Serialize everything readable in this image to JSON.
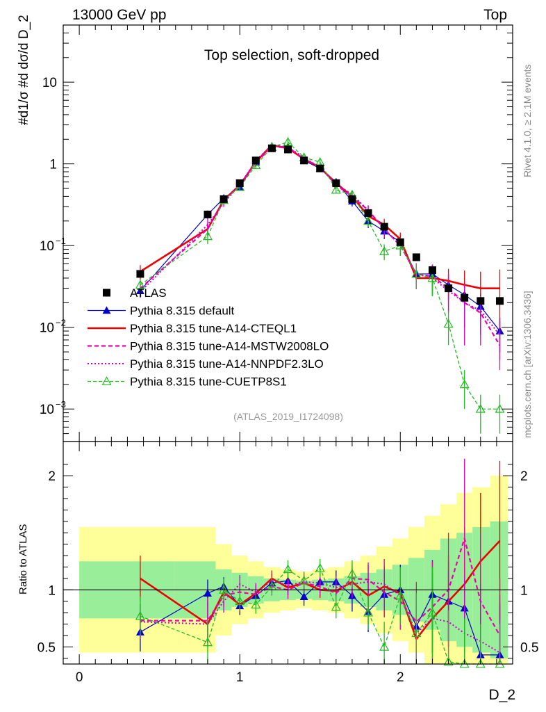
{
  "header": {
    "left": "13000 GeV pp",
    "right": "Top",
    "side_top": "Rivet 4.1.0, ≥ 2.1M events",
    "side_bottom": "mcplots.cern.ch [arXiv:1306.3436]"
  },
  "chart_data": {
    "type": "line",
    "title": "Top selection, soft-dropped",
    "analysis_id": "(ATLAS_2019_I1724098)",
    "xlabel": "D_2",
    "ylabel": "#d1/σ #d dσ/d D_2",
    "ratio_ylabel": "Ratio to ATLAS",
    "xlim": [
      -0.1,
      2.7
    ],
    "ylim_log": [
      0.0004,
      50
    ],
    "ratio_ylim": [
      0.35,
      2.3
    ],
    "x_ticks": [
      {
        "v": 0,
        "label": "0"
      },
      {
        "v": 1,
        "label": "1"
      },
      {
        "v": 2,
        "label": "2"
      }
    ],
    "y_ticks": [
      {
        "v": 10,
        "base": "10",
        "exp": ""
      },
      {
        "v": 1,
        "base": "1",
        "exp": ""
      },
      {
        "v": 0.1,
        "base": "10",
        "exp": "−1"
      },
      {
        "v": 0.01,
        "base": "10",
        "exp": "−2"
      },
      {
        "v": 0.001,
        "base": "10",
        "exp": "−3"
      }
    ],
    "ratio_ticks": [
      {
        "v": 0.5,
        "label": "0.5"
      },
      {
        "v": 1,
        "label": "1"
      },
      {
        "v": 2,
        "label": "2"
      }
    ],
    "x": [
      0.38,
      0.8,
      0.9,
      1.0,
      1.1,
      1.2,
      1.3,
      1.4,
      1.5,
      1.6,
      1.7,
      1.8,
      1.9,
      2.0,
      2.1,
      2.2,
      2.3,
      2.4,
      2.5,
      2.62
    ],
    "data": {
      "name": "ATLAS",
      "values": [
        0.045,
        0.24,
        0.37,
        0.58,
        1.1,
        1.55,
        1.5,
        1.1,
        0.88,
        0.58,
        0.37,
        0.25,
        0.17,
        0.11,
        0.072,
        0.05,
        0.03,
        0.023,
        0.021,
        0.021
      ],
      "band_inner": [
        0.25,
        0.25,
        0.18,
        0.15,
        0.12,
        0.1,
        0.09,
        0.08,
        0.09,
        0.1,
        0.12,
        0.15,
        0.18,
        0.22,
        0.28,
        0.35,
        0.45,
        0.5,
        0.55,
        0.6
      ],
      "band_outer": [
        0.55,
        0.55,
        0.4,
        0.3,
        0.25,
        0.2,
        0.18,
        0.16,
        0.18,
        0.2,
        0.25,
        0.3,
        0.38,
        0.45,
        0.55,
        0.65,
        0.75,
        0.85,
        0.9,
        1.0
      ]
    },
    "series": [
      {
        "name": "Pythia 8.315 default",
        "color": "#0000cc",
        "dash": "",
        "width": 1.2,
        "marker": "triangle-filled",
        "values": [
          0.028,
          0.24,
          0.38,
          0.52,
          1.05,
          1.65,
          1.62,
          1.1,
          0.88,
          0.6,
          0.35,
          0.2,
          0.15,
          0.11,
          0.045,
          0.045,
          0.033,
          0.025,
          0.018,
          0.009
        ],
        "ratio": [
          0.63,
          0.97,
          1.03,
          0.86,
          0.95,
          1.06,
          1.08,
          0.94,
          1.07,
          1.07,
          0.95,
          0.81,
          0.96,
          1.0,
          0.68,
          0.96,
          0.9,
          0.84,
          0.43,
          0.43
        ],
        "err": [
          0.17,
          0.12,
          0.08,
          0.08,
          0.08,
          0.08,
          0.08,
          0.08,
          0.08,
          0.1,
          0.14,
          0.18,
          0.2,
          0.22,
          0.25,
          0.3,
          0.35,
          0.4,
          0.45,
          0.45
        ]
      },
      {
        "name": "Pythia 8.315 tune-A14-CTEQL1",
        "color": "#ee0000",
        "dash": "",
        "width": 2.6,
        "marker": "none",
        "values": [
          0.048,
          0.16,
          0.36,
          0.55,
          1.05,
          1.7,
          1.55,
          1.15,
          0.9,
          0.58,
          0.4,
          0.23,
          0.18,
          0.12,
          0.04,
          0.04,
          0.037,
          0.033,
          0.03,
          0.03
        ],
        "ratio": [
          1.1,
          0.7,
          0.98,
          0.87,
          0.97,
          1.1,
          1.02,
          1.06,
          1.0,
          0.99,
          1.07,
          0.95,
          1.03,
          0.97,
          0.57,
          0.75,
          0.9,
          1.05,
          1.25,
          1.43
        ],
        "err": [
          0.2,
          0.15,
          0.08,
          0.07,
          0.07,
          0.07,
          0.07,
          0.07,
          0.07,
          0.08,
          0.12,
          0.15,
          0.18,
          0.2,
          0.25,
          0.3,
          0.4,
          0.5,
          0.6,
          0.7
        ]
      },
      {
        "name": "Pythia 8.315 tune-A14-MSTW2008LO",
        "color": "#ee00aa",
        "dash": "6,4",
        "width": 2.2,
        "marker": "none",
        "values": [
          0.03,
          0.16,
          0.35,
          0.55,
          1.05,
          1.6,
          1.6,
          1.15,
          0.92,
          0.55,
          0.4,
          0.27,
          0.16,
          0.1,
          0.045,
          0.042,
          0.03,
          0.02,
          0.015,
          0.006
        ],
        "ratio": [
          0.73,
          0.73,
          0.95,
          0.98,
          0.96,
          1.03,
          1.0,
          1.06,
          1.03,
          0.97,
          1.1,
          1.09,
          0.98,
          0.9,
          0.72,
          0.85,
          1.0,
          1.45,
          0.9,
          0.6
        ],
        "err": [
          0.15,
          0.2,
          0.09,
          0.08,
          0.08,
          0.08,
          0.08,
          0.08,
          0.08,
          0.1,
          0.12,
          0.15,
          0.22,
          0.25,
          0.35,
          0.4,
          0.5,
          0.7,
          0.6,
          0.5
        ]
      },
      {
        "name": "Pythia 8.315 tune-A14-NNPDF2.3LO",
        "color": "#cc00cc",
        "dash": "2,3",
        "width": 2.0,
        "marker": "none",
        "values": [
          0.027,
          0.18,
          0.33,
          0.55,
          1.1,
          1.7,
          1.6,
          1.2,
          0.9,
          0.57,
          0.42,
          0.27,
          0.16,
          0.1,
          0.045,
          0.04,
          0.028,
          0.02,
          0.016,
          0.008
        ],
        "ratio": [
          0.72,
          0.7,
          0.9,
          1.05,
          0.98,
          1.08,
          1.04,
          1.07,
          1.06,
          1.02,
          1.05,
          1.07,
          1.05,
          0.95,
          0.62,
          0.75,
          0.72,
          0.62,
          0.55,
          0.45
        ],
        "err": [
          0.15,
          0.2,
          0.1,
          0.08,
          0.08,
          0.08,
          0.08,
          0.08,
          0.08,
          0.1,
          0.12,
          0.15,
          0.22,
          0.25,
          0.35,
          0.4,
          0.45,
          0.5,
          0.5,
          0.5
        ]
      },
      {
        "name": "Pythia 8.315 tune-CUETP8S1",
        "color": "#22bb22",
        "dash": "5,3",
        "width": 1.3,
        "marker": "triangle-open",
        "values": [
          0.033,
          0.13,
          0.36,
          0.52,
          0.96,
          1.6,
          1.85,
          1.2,
          1.05,
          0.48,
          0.42,
          0.2,
          0.085,
          0.1,
          0.045,
          0.04,
          0.011,
          0.002,
          0.001,
          0.001
        ],
        "ratio": [
          0.77,
          0.54,
          1.0,
          0.9,
          0.87,
          1.03,
          1.18,
          1.08,
          1.19,
          0.85,
          1.14,
          0.8,
          0.5,
          0.95,
          0.62,
          0.8,
          0.37,
          0.25,
          0.2,
          0.2
        ],
        "err": [
          0.17,
          0.2,
          0.1,
          0.08,
          0.08,
          0.08,
          0.08,
          0.08,
          0.08,
          0.1,
          0.12,
          0.15,
          0.22,
          0.25,
          0.35,
          0.4,
          0.45,
          0.5,
          0.5,
          0.5
        ]
      }
    ]
  }
}
